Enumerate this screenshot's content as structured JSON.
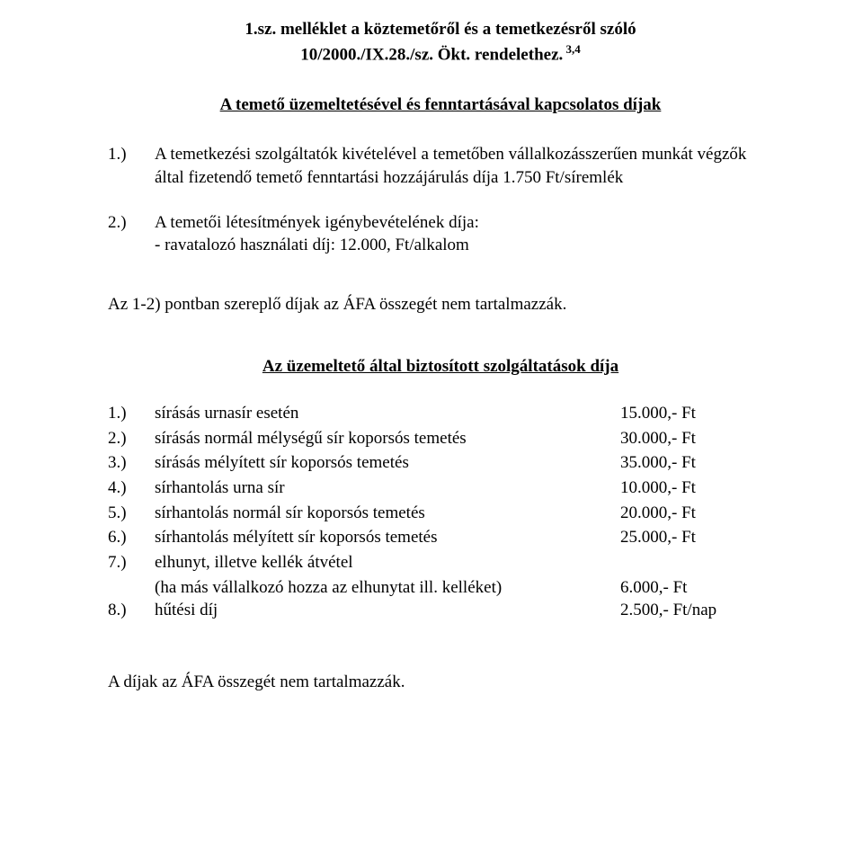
{
  "title": {
    "line1": "1.sz. melléklet a köztemetőről és a temetkezésről szóló",
    "line2_prefix": "10/2000./IX.28./sz. Ökt. rendelethez.",
    "footnote": " 3,4"
  },
  "section1": {
    "heading": "A temető üzemeltetésével és fenntartásával kapcsolatos díjak",
    "items": [
      {
        "num": "1.)",
        "text": "A temetkezési szolgáltatók kivételével a temetőben vállalkozásszerűen munkát végzők által fizetendő temető fenntartási hozzájárulás díja 1.750 Ft/síremlék"
      },
      {
        "num": "2.)",
        "text": "A temetői létesítmények igénybevételének díja:",
        "subtext": "- ravatalozó használati díj:    12.000, Ft/alkalom"
      }
    ],
    "note": "Az 1-2) pontban szereplő díjak az ÁFA összegét nem tartalmazzák."
  },
  "section2": {
    "heading": "Az üzemeltető által biztosított szolgáltatások díja",
    "items": [
      {
        "num": "1.)",
        "label": "sírásás urnasír esetén",
        "value": "15.000,- Ft"
      },
      {
        "num": "2.)",
        "label": "sírásás normál mélységű sír koporsós temetés",
        "value": "30.000,- Ft"
      },
      {
        "num": "3.)",
        "label": "sírásás mélyített sír koporsós temetés",
        "value": "35.000,- Ft"
      },
      {
        "num": "4.)",
        "label": "sírhantolás urna sír",
        "value": "10.000,- Ft"
      },
      {
        "num": "5.)",
        "label": "sírhantolás normál sír koporsós temetés",
        "value": "20.000,- Ft"
      },
      {
        "num": "6.)",
        "label": "sírhantolás mélyített sír koporsós temetés",
        "value": "25.000,- Ft"
      },
      {
        "num": "7.)",
        "label": "elhunyt, illetve kellék átvétel",
        "value": ""
      },
      {
        "num": "8.)",
        "label": "hűtési díj",
        "value": "2.500,- Ft/nap"
      }
    ],
    "subline7": {
      "label": "(ha más vállalkozó hozza az elhunytat ill. kelléket)",
      "value": "6.000,- Ft"
    }
  },
  "bottom_note": "A díjak az ÁFA összegét nem tartalmazzák."
}
